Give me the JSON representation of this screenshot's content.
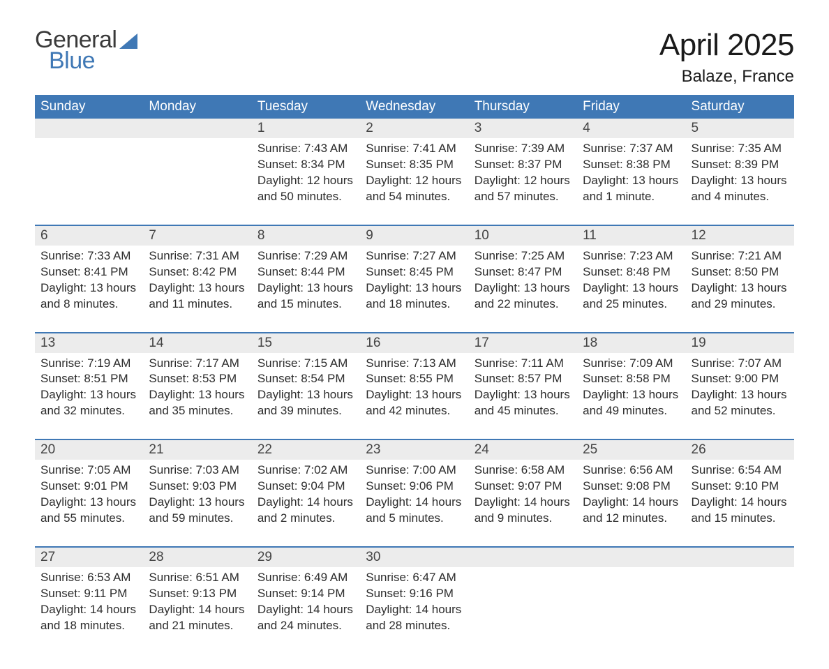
{
  "logo": {
    "line1": "General",
    "line2": "Blue"
  },
  "title": "April 2025",
  "location": "Balaze, France",
  "colors": {
    "header_bg": "#3f78b5",
    "header_text": "#ffffff",
    "numrow_bg": "#ececec",
    "border": "#3f78b5",
    "logo_accent": "#3f78b5"
  },
  "day_headers": [
    "Sunday",
    "Monday",
    "Tuesday",
    "Wednesday",
    "Thursday",
    "Friday",
    "Saturday"
  ],
  "weeks": [
    {
      "nums": [
        "",
        "",
        "1",
        "2",
        "3",
        "4",
        "5"
      ],
      "cells": [
        {
          "lines": []
        },
        {
          "lines": []
        },
        {
          "lines": [
            "Sunrise: 7:43 AM",
            "Sunset: 8:34 PM",
            "Daylight: 12 hours",
            "and 50 minutes."
          ]
        },
        {
          "lines": [
            "Sunrise: 7:41 AM",
            "Sunset: 8:35 PM",
            "Daylight: 12 hours",
            "and 54 minutes."
          ]
        },
        {
          "lines": [
            "Sunrise: 7:39 AM",
            "Sunset: 8:37 PM",
            "Daylight: 12 hours",
            "and 57 minutes."
          ]
        },
        {
          "lines": [
            "Sunrise: 7:37 AM",
            "Sunset: 8:38 PM",
            "Daylight: 13 hours",
            "and 1 minute."
          ]
        },
        {
          "lines": [
            "Sunrise: 7:35 AM",
            "Sunset: 8:39 PM",
            "Daylight: 13 hours",
            "and 4 minutes."
          ]
        }
      ]
    },
    {
      "nums": [
        "6",
        "7",
        "8",
        "9",
        "10",
        "11",
        "12"
      ],
      "cells": [
        {
          "lines": [
            "Sunrise: 7:33 AM",
            "Sunset: 8:41 PM",
            "Daylight: 13 hours",
            "and 8 minutes."
          ]
        },
        {
          "lines": [
            "Sunrise: 7:31 AM",
            "Sunset: 8:42 PM",
            "Daylight: 13 hours",
            "and 11 minutes."
          ]
        },
        {
          "lines": [
            "Sunrise: 7:29 AM",
            "Sunset: 8:44 PM",
            "Daylight: 13 hours",
            "and 15 minutes."
          ]
        },
        {
          "lines": [
            "Sunrise: 7:27 AM",
            "Sunset: 8:45 PM",
            "Daylight: 13 hours",
            "and 18 minutes."
          ]
        },
        {
          "lines": [
            "Sunrise: 7:25 AM",
            "Sunset: 8:47 PM",
            "Daylight: 13 hours",
            "and 22 minutes."
          ]
        },
        {
          "lines": [
            "Sunrise: 7:23 AM",
            "Sunset: 8:48 PM",
            "Daylight: 13 hours",
            "and 25 minutes."
          ]
        },
        {
          "lines": [
            "Sunrise: 7:21 AM",
            "Sunset: 8:50 PM",
            "Daylight: 13 hours",
            "and 29 minutes."
          ]
        }
      ]
    },
    {
      "nums": [
        "13",
        "14",
        "15",
        "16",
        "17",
        "18",
        "19"
      ],
      "cells": [
        {
          "lines": [
            "Sunrise: 7:19 AM",
            "Sunset: 8:51 PM",
            "Daylight: 13 hours",
            "and 32 minutes."
          ]
        },
        {
          "lines": [
            "Sunrise: 7:17 AM",
            "Sunset: 8:53 PM",
            "Daylight: 13 hours",
            "and 35 minutes."
          ]
        },
        {
          "lines": [
            "Sunrise: 7:15 AM",
            "Sunset: 8:54 PM",
            "Daylight: 13 hours",
            "and 39 minutes."
          ]
        },
        {
          "lines": [
            "Sunrise: 7:13 AM",
            "Sunset: 8:55 PM",
            "Daylight: 13 hours",
            "and 42 minutes."
          ]
        },
        {
          "lines": [
            "Sunrise: 7:11 AM",
            "Sunset: 8:57 PM",
            "Daylight: 13 hours",
            "and 45 minutes."
          ]
        },
        {
          "lines": [
            "Sunrise: 7:09 AM",
            "Sunset: 8:58 PM",
            "Daylight: 13 hours",
            "and 49 minutes."
          ]
        },
        {
          "lines": [
            "Sunrise: 7:07 AM",
            "Sunset: 9:00 PM",
            "Daylight: 13 hours",
            "and 52 minutes."
          ]
        }
      ]
    },
    {
      "nums": [
        "20",
        "21",
        "22",
        "23",
        "24",
        "25",
        "26"
      ],
      "cells": [
        {
          "lines": [
            "Sunrise: 7:05 AM",
            "Sunset: 9:01 PM",
            "Daylight: 13 hours",
            "and 55 minutes."
          ]
        },
        {
          "lines": [
            "Sunrise: 7:03 AM",
            "Sunset: 9:03 PM",
            "Daylight: 13 hours",
            "and 59 minutes."
          ]
        },
        {
          "lines": [
            "Sunrise: 7:02 AM",
            "Sunset: 9:04 PM",
            "Daylight: 14 hours",
            "and 2 minutes."
          ]
        },
        {
          "lines": [
            "Sunrise: 7:00 AM",
            "Sunset: 9:06 PM",
            "Daylight: 14 hours",
            "and 5 minutes."
          ]
        },
        {
          "lines": [
            "Sunrise: 6:58 AM",
            "Sunset: 9:07 PM",
            "Daylight: 14 hours",
            "and 9 minutes."
          ]
        },
        {
          "lines": [
            "Sunrise: 6:56 AM",
            "Sunset: 9:08 PM",
            "Daylight: 14 hours",
            "and 12 minutes."
          ]
        },
        {
          "lines": [
            "Sunrise: 6:54 AM",
            "Sunset: 9:10 PM",
            "Daylight: 14 hours",
            "and 15 minutes."
          ]
        }
      ]
    },
    {
      "nums": [
        "27",
        "28",
        "29",
        "30",
        "",
        "",
        ""
      ],
      "cells": [
        {
          "lines": [
            "Sunrise: 6:53 AM",
            "Sunset: 9:11 PM",
            "Daylight: 14 hours",
            "and 18 minutes."
          ]
        },
        {
          "lines": [
            "Sunrise: 6:51 AM",
            "Sunset: 9:13 PM",
            "Daylight: 14 hours",
            "and 21 minutes."
          ]
        },
        {
          "lines": [
            "Sunrise: 6:49 AM",
            "Sunset: 9:14 PM",
            "Daylight: 14 hours",
            "and 24 minutes."
          ]
        },
        {
          "lines": [
            "Sunrise: 6:47 AM",
            "Sunset: 9:16 PM",
            "Daylight: 14 hours",
            "and 28 minutes."
          ]
        },
        {
          "lines": []
        },
        {
          "lines": []
        },
        {
          "lines": []
        }
      ]
    }
  ]
}
